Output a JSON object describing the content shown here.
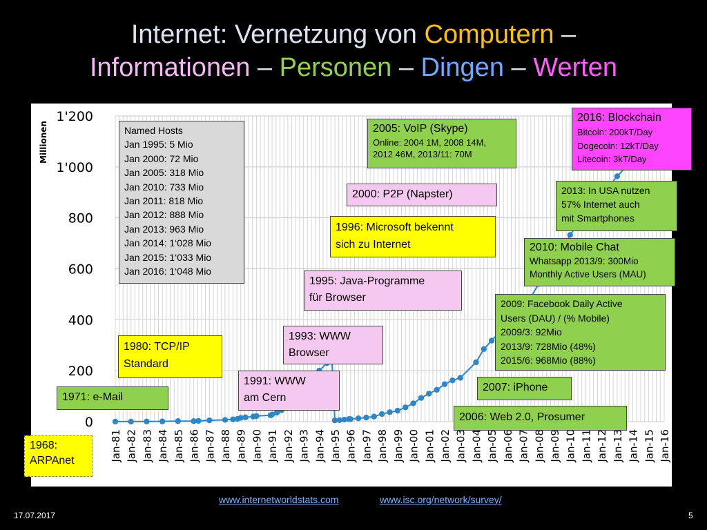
{
  "title": {
    "line1": [
      {
        "text": "Internet: Vernetzung von ",
        "color": "#dce3f0"
      },
      {
        "text": "Computern",
        "color": "#ffc000"
      },
      {
        "text": " –",
        "color": "#dce3f0"
      }
    ],
    "line2": [
      {
        "text": "Informationen",
        "color": "#f4b8f4"
      },
      {
        "text": " – ",
        "color": "#dce3f0"
      },
      {
        "text": "Personen",
        "color": "#92d050"
      },
      {
        "text": " – ",
        "color": "#dce3f0"
      },
      {
        "text": "Dingen",
        "color": "#6fa8ff"
      },
      {
        "text": " – ",
        "color": "#dce3f0"
      },
      {
        "text": "Werten",
        "color": "#ff5cff"
      }
    ]
  },
  "chart_data": {
    "type": "scatter",
    "ylabel": "Millionen",
    "ylim": [
      0,
      1200
    ],
    "yticks": [
      "0",
      "200",
      "400",
      "600",
      "800",
      "1'000",
      "1'200"
    ],
    "xticks": [
      "Jan-81",
      "Jan-82",
      "Jan-83",
      "Jan-84",
      "Jan-85",
      "Jan-86",
      "Jan-87",
      "Jan-88",
      "Jan-89",
      "Jan-90",
      "Jan-91",
      "Jan-92",
      "Jan-93",
      "Jan-94",
      "Jan-95",
      "Jan-96",
      "Jan-97",
      "Jan-98",
      "Jan-99",
      "Jan-00",
      "Jan-01",
      "Jan-02",
      "Jan-03",
      "Jan-04",
      "Jan-05",
      "Jan-06",
      "Jan-07",
      "Jan-08",
      "Jan-09",
      "Jan-10",
      "Jan-11",
      "Jan-12",
      "Jan-13",
      "Jan-14",
      "Jan-15",
      "Jan-16"
    ],
    "xlim": [
      1981,
      2016
    ],
    "grid": true,
    "marker_color": "#2e86c8",
    "points": [
      [
        1981.0,
        0.2
      ],
      [
        1982.0,
        0.2
      ],
      [
        1983.0,
        0.6
      ],
      [
        1984.0,
        1.0
      ],
      [
        1985.0,
        2
      ],
      [
        1986.0,
        2
      ],
      [
        1986.3,
        3
      ],
      [
        1987.0,
        5
      ],
      [
        1988.0,
        7
      ],
      [
        1988.5,
        9
      ],
      [
        1988.8,
        11
      ],
      [
        1989.0,
        15
      ],
      [
        1989.3,
        17
      ],
      [
        1989.8,
        20
      ],
      [
        1990.0,
        22
      ],
      [
        1990.9,
        25
      ],
      [
        1991.0,
        28
      ],
      [
        1991.3,
        35
      ],
      [
        1991.6,
        45
      ],
      [
        1991.9,
        55
      ],
      [
        1992.0,
        72
      ],
      [
        1992.3,
        90
      ],
      [
        1992.6,
        110
      ],
      [
        1992.9,
        130
      ],
      [
        1993.0,
        150
      ],
      [
        1993.3,
        160
      ],
      [
        1993.6,
        175
      ],
      [
        1993.9,
        190
      ],
      [
        1994.0,
        200
      ],
      [
        1994.5,
        230
      ],
      [
        1994.8,
        260
      ],
      [
        1995.0,
        5
      ],
      [
        1995.3,
        6
      ],
      [
        1995.6,
        8
      ],
      [
        1995.9,
        10
      ],
      [
        1996.0,
        10
      ],
      [
        1996.5,
        13
      ],
      [
        1997.0,
        16
      ],
      [
        1997.5,
        20
      ],
      [
        1998.0,
        30
      ],
      [
        1998.5,
        37
      ],
      [
        1999.0,
        43
      ],
      [
        1999.5,
        56
      ],
      [
        2000.0,
        72
      ],
      [
        2000.5,
        93
      ],
      [
        2001.0,
        110
      ],
      [
        2001.5,
        125
      ],
      [
        2002.0,
        147
      ],
      [
        2002.5,
        162
      ],
      [
        2003.0,
        172
      ],
      [
        2004.0,
        233
      ],
      [
        2004.5,
        285
      ],
      [
        2005.0,
        318
      ],
      [
        2005.5,
        353
      ],
      [
        2006.0,
        395
      ],
      [
        2006.5,
        439
      ],
      [
        2007.0,
        433
      ],
      [
        2007.5,
        489
      ],
      [
        2008.0,
        541
      ],
      [
        2008.5,
        570
      ],
      [
        2009.0,
        625
      ],
      [
        2009.5,
        681
      ],
      [
        2010.0,
        733
      ],
      [
        2011.0,
        818
      ],
      [
        2012.0,
        888
      ],
      [
        2013.0,
        963
      ],
      [
        2014.0,
        1028
      ],
      [
        2015.0,
        1033
      ],
      [
        2016.0,
        1048
      ]
    ]
  },
  "boxes": {
    "named_hosts": {
      "lines": "Named Hosts\nJan 1995: 5 Mio\nJan 2000: 72 Mio\nJan 2005: 318 Mio\nJan 2010: 733 Mio\nJan 2011: 818 Mio\nJan 2012: 888 Mio\nJan 2013: 963 Mio\nJan 2014: 1‘028 Mio\nJan 2015: 1‘033 Mio\nJan 2016: 1‘048 Mio"
    },
    "arpanet": {
      "heading": "1968:\nARPAnet"
    },
    "email": {
      "heading": "1971: e-Mail"
    },
    "tcpip": {
      "heading": "1980: TCP/IP\nStandard"
    },
    "www_cern": {
      "heading": "1991: WWW\nam Cern"
    },
    "www_browser": {
      "heading": "1993: WWW\nBrowser"
    },
    "java": {
      "heading": "1995: Java-Programme\nfür Browser"
    },
    "microsoft": {
      "heading": "1996: Microsoft bekennt\nsich zu Internet"
    },
    "p2p": {
      "heading": "2000: P2P (Napster)"
    },
    "voip": {
      "heading": "2005: VoIP (Skype)",
      "sub": "Online: 2004 1M, 2008 14M,\n2012 46M, 2013/11: 70M"
    },
    "web20": {
      "heading": "2006: Web 2.0, Prosumer"
    },
    "iphone": {
      "heading": "2007: iPhone"
    },
    "facebook": {
      "sub": "2009: Facebook Daily Active\nUsers (DAU) / (% Mobile)\n2009/3: 92Mio\n2013/9: 728Mio (48%)\n2015/6: 968Mio (88%)"
    },
    "mobile_chat": {
      "heading": "2010: Mobile Chat",
      "sub": "Whatsapp 2013/9: 300Mio\nMonthly Active Users (MAU)"
    },
    "smartphones": {
      "sub": "2013: In USA nutzen\n57%  Internet auch\nmit Smartphones"
    },
    "blockchain": {
      "heading": "2016: Blockchain",
      "sub": "Bitcoin: 200kT/Day\nDogecoin: 12kT/Day\nLitecoin: 3kT/Day"
    }
  },
  "footer": {
    "date": "17.07.2017",
    "page": "5",
    "link1": "www.internetworldstats.com",
    "link2": "www.isc.org/network/survey/"
  }
}
